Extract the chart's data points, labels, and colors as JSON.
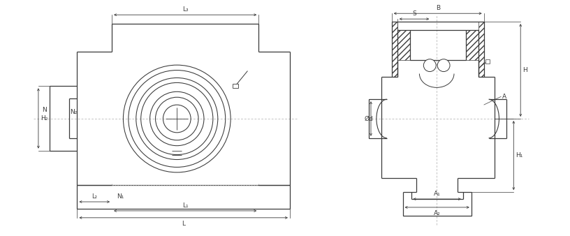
{
  "bg_color": "#ffffff",
  "line_color": "#3a3a3a",
  "dim_color": "#3a3a3a",
  "centerline_color": "#aaaaaa",
  "fig_width": 8.16,
  "fig_height": 3.38,
  "dpi": 100,
  "labels": {
    "L3": "L₃",
    "L": "L",
    "L1": "L₁",
    "L2": "L₂",
    "N1": "N₁",
    "N2": "N₂",
    "H2": "H₂",
    "N": "N",
    "B": "B",
    "S": "S",
    "phi_d": "Ød",
    "H1": "H₁",
    "H": "H",
    "A": "A",
    "A1": "A₁",
    "A2": "A₂"
  }
}
